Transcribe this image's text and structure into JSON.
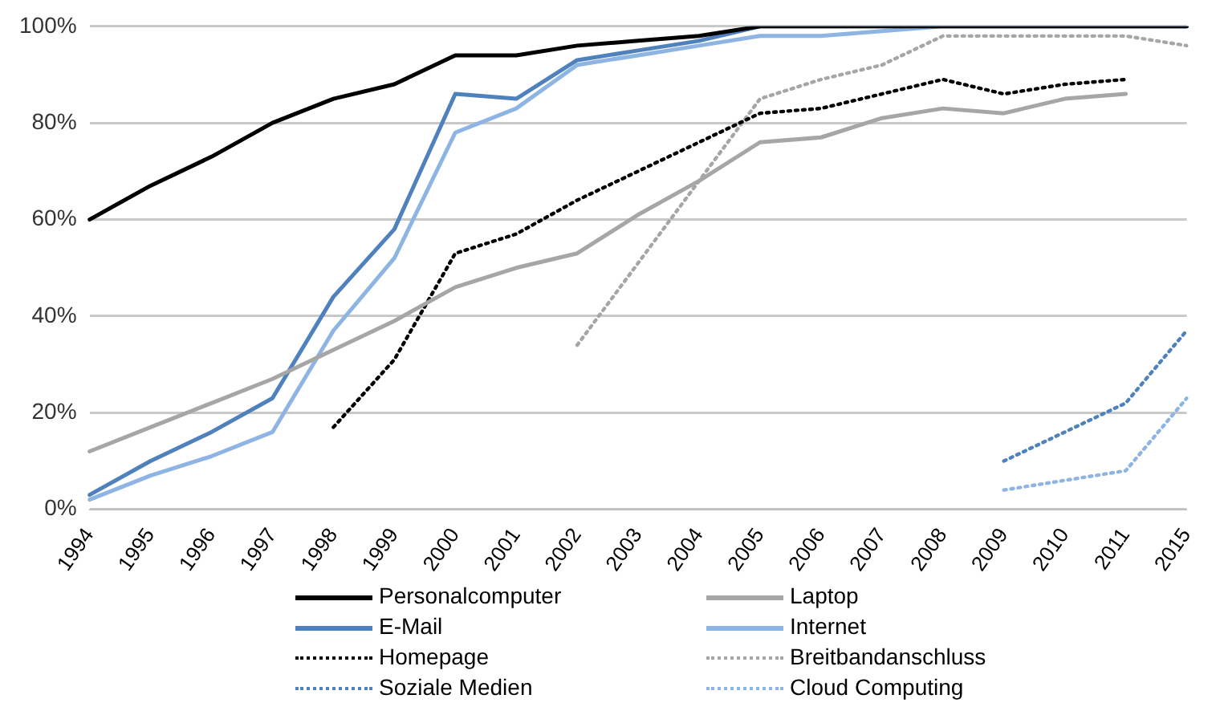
{
  "chart_data": {
    "type": "line",
    "categories": [
      "1994",
      "1995",
      "1996",
      "1997",
      "1998",
      "1999",
      "2000",
      "2001",
      "2002",
      "2003",
      "2004",
      "2005",
      "2006",
      "2007",
      "2008",
      "2009",
      "2010",
      "2011",
      "2015"
    ],
    "series": [
      {
        "name": "Personalcomputer",
        "color": "#000000",
        "line_style": "solid",
        "values": [
          60,
          67,
          73,
          80,
          85,
          88,
          94,
          94,
          96,
          97,
          98,
          100,
          100,
          100,
          100,
          100,
          100,
          100,
          100
        ]
      },
      {
        "name": "Laptop",
        "color": "#a6a6a6",
        "line_style": "solid",
        "values": [
          12,
          17,
          22,
          27,
          33,
          39,
          46,
          50,
          53,
          61,
          68,
          76,
          77,
          81,
          83,
          82,
          85,
          86,
          null
        ]
      },
      {
        "name": "E-Mail",
        "color": "#4f81bd",
        "line_style": "solid",
        "values": [
          3,
          10,
          16,
          23,
          44,
          58,
          86,
          85,
          93,
          95,
          97,
          100,
          100,
          100,
          100,
          100,
          100,
          100,
          100
        ]
      },
      {
        "name": "Internet",
        "color": "#8db4e2",
        "line_style": "solid",
        "values": [
          2,
          7,
          11,
          16,
          37,
          52,
          78,
          83,
          92,
          94,
          96,
          98,
          98,
          99,
          100,
          100,
          100,
          100,
          100
        ]
      },
      {
        "name": "Homepage",
        "color": "#000000",
        "line_style": "dotted",
        "values": [
          null,
          null,
          null,
          null,
          17,
          31,
          53,
          57,
          64,
          70,
          76,
          82,
          83,
          86,
          89,
          86,
          88,
          89,
          null
        ]
      },
      {
        "name": "Breitbandanschluss",
        "color": "#a6a6a6",
        "line_style": "dotted",
        "values": [
          null,
          null,
          null,
          null,
          null,
          null,
          null,
          null,
          34,
          51,
          68,
          85,
          89,
          92,
          98,
          98,
          98,
          98,
          96
        ]
      },
      {
        "name": "Soziale Medien",
        "color": "#4f81bd",
        "line_style": "dotted",
        "values": [
          null,
          null,
          null,
          null,
          null,
          null,
          null,
          null,
          null,
          null,
          null,
          null,
          null,
          null,
          null,
          10,
          16,
          22,
          37
        ]
      },
      {
        "name": "Cloud Computing",
        "color": "#8db4e2",
        "line_style": "dotted",
        "values": [
          null,
          null,
          null,
          null,
          null,
          null,
          null,
          null,
          null,
          null,
          null,
          null,
          null,
          null,
          null,
          4,
          6,
          8,
          23
        ]
      }
    ],
    "ylim": [
      0,
      100
    ],
    "yticks": [
      {
        "value": 0,
        "label": "0%"
      },
      {
        "value": 20,
        "label": "20%"
      },
      {
        "value": 40,
        "label": "40%"
      },
      {
        "value": 60,
        "label": "60%"
      },
      {
        "value": 80,
        "label": "80%"
      },
      {
        "value": 100,
        "label": "100%"
      }
    ],
    "grid": "y",
    "legend": "bottom",
    "marker": "none"
  }
}
